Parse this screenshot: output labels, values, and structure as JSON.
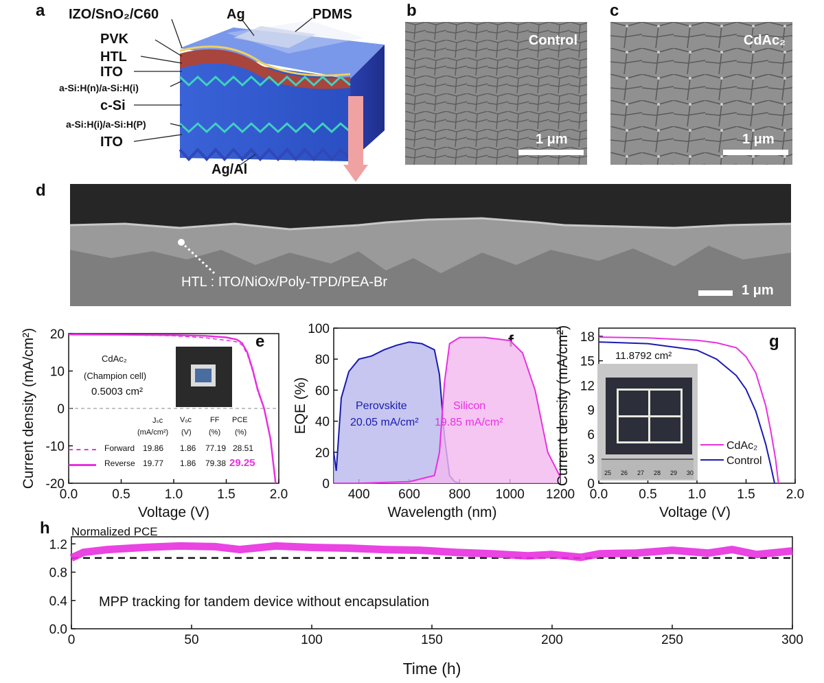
{
  "panels": {
    "a": {
      "label": "a",
      "layers": [
        "IZO/SnO₂/C60",
        "PVK",
        "HTL",
        "ITO",
        "a-Si:H(n)/a-Si:H(i)",
        "c-Si",
        "a-Si:H(i)/a-Si:H(P)",
        "ITO",
        "Ag/Al"
      ],
      "top_labels": [
        "Ag",
        "PDMS"
      ]
    },
    "b": {
      "label": "b",
      "caption": "Control",
      "scale": "1 μm"
    },
    "c": {
      "label": "c",
      "caption": "CdAc₂",
      "scale": "1 μm"
    },
    "d": {
      "label": "d",
      "annotation": "HTL : ITO/NiOx/Poly-TPD/PEA-Br",
      "scale": "1 μm"
    },
    "e": {
      "label": "e",
      "inset_title": "CdAc₂",
      "inset_sub": "(Champion cell)",
      "area": "0.5003 cm²",
      "table_headers": [
        "Jₛᴄ",
        "Vₒᴄ",
        "FF",
        "PCE"
      ],
      "table_units": [
        "(mA/cm²)",
        "(V)",
        "(%)",
        "(%)"
      ],
      "rows": [
        {
          "name": "Forward",
          "jsc": "19.86",
          "voc": "1.86",
          "ff": "77.19",
          "pce": "28.51"
        },
        {
          "name": "Reverse",
          "jsc": "19.77",
          "voc": "1.86",
          "ff": "79.38",
          "pce": "29.25"
        }
      ]
    },
    "f": {
      "label": "f",
      "series_labels": [
        "Perovskite",
        "Silicon"
      ],
      "jsc_labels": [
        "20.05 mA/cm²",
        "19.85 mA/cm²"
      ]
    },
    "g": {
      "label": "g",
      "area": "11.8792 cm²",
      "ruler": [
        "25",
        "26",
        "27",
        "28",
        "29",
        "30"
      ]
    },
    "h": {
      "label": "h",
      "annotation": "MPP tracking for tandem device without encapsulation"
    }
  },
  "colors": {
    "magenta": "#e830e0",
    "blue": "#1a1ab0",
    "pink_fill": "#f2b8ef",
    "blue_fill": "#b8b8ec"
  },
  "chart_data": [
    {
      "id": "e",
      "type": "line",
      "xlabel": "Voltage (V)",
      "ylabel": "Current density (mA/cm²)",
      "xlim": [
        0,
        2.0
      ],
      "ylim": [
        -20,
        20
      ],
      "xticks": [
        "0.0",
        "0.5",
        "1.0",
        "1.5",
        "2.0"
      ],
      "yticks": [
        "-20",
        "-10",
        "0",
        "10",
        "20"
      ],
      "series": [
        {
          "name": "Forward",
          "style": "dashed",
          "x": [
            0,
            0.5,
            1.0,
            1.3,
            1.5,
            1.6,
            1.65,
            1.7,
            1.75,
            1.8,
            1.86
          ],
          "y": [
            19.86,
            19.7,
            19.4,
            18.9,
            18.2,
            17.8,
            17.0,
            14.5,
            10.0,
            4.5,
            0
          ]
        },
        {
          "name": "Reverse",
          "style": "solid",
          "x": [
            0,
            0.5,
            1.0,
            1.3,
            1.5,
            1.6,
            1.65,
            1.7,
            1.75,
            1.8,
            1.86,
            1.92,
            1.97
          ],
          "y": [
            19.77,
            19.7,
            19.6,
            19.4,
            19.0,
            18.4,
            17.5,
            15.0,
            10.5,
            5.0,
            0,
            -8,
            -20
          ]
        }
      ]
    },
    {
      "id": "f",
      "type": "area",
      "xlabel": "Wavelength (nm)",
      "ylabel": "EQE (%)",
      "xlim": [
        300,
        1200
      ],
      "ylim": [
        0,
        100
      ],
      "xticks": [
        "400",
        "600",
        "800",
        "1000",
        "1200"
      ],
      "yticks": [
        "0",
        "20",
        "40",
        "60",
        "80",
        "100"
      ],
      "series": [
        {
          "name": "Perovskite",
          "x": [
            300,
            310,
            330,
            360,
            400,
            450,
            500,
            550,
            600,
            650,
            700,
            720,
            740,
            760,
            780,
            800
          ],
          "y": [
            20,
            8,
            55,
            72,
            80,
            82,
            86,
            89,
            91,
            90,
            86,
            70,
            30,
            5,
            1,
            0
          ]
        },
        {
          "name": "Silicon",
          "x": [
            300,
            400,
            600,
            700,
            720,
            740,
            760,
            800,
            900,
            1000,
            1050,
            1100,
            1150,
            1200
          ],
          "y": [
            0,
            0,
            1,
            5,
            20,
            65,
            90,
            94,
            94,
            92,
            84,
            60,
            20,
            4
          ]
        }
      ]
    },
    {
      "id": "g",
      "type": "line",
      "xlabel": "Voltage (V)",
      "ylabel": "Current density (mA/cm²)",
      "xlim": [
        0,
        2.0
      ],
      "ylim": [
        0,
        19
      ],
      "xticks": [
        "0.0",
        "0.5",
        "1.0",
        "1.5",
        "2.0"
      ],
      "yticks": [
        "0",
        "3",
        "6",
        "9",
        "12",
        "15",
        "18"
      ],
      "series": [
        {
          "name": "CdAc₂",
          "color": "magenta",
          "x": [
            0,
            0.5,
            1.0,
            1.2,
            1.4,
            1.5,
            1.6,
            1.7,
            1.75,
            1.8,
            1.83
          ],
          "y": [
            17.9,
            17.8,
            17.5,
            17.2,
            16.6,
            15.5,
            13.5,
            9.5,
            6.5,
            3.0,
            0
          ]
        },
        {
          "name": "Control",
          "color": "blue",
          "x": [
            0,
            0.5,
            1.0,
            1.2,
            1.4,
            1.5,
            1.6,
            1.7,
            1.75,
            1.79
          ],
          "y": [
            17.3,
            17.1,
            16.3,
            15.2,
            13.2,
            11.5,
            8.8,
            4.8,
            2.2,
            0
          ]
        }
      ]
    },
    {
      "id": "h",
      "type": "line",
      "ylabel_top": "Normalized PCE",
      "xlabel": "Time (h)",
      "xlim": [
        0,
        300
      ],
      "ylim": [
        0,
        1.3
      ],
      "xticks": [
        "0",
        "50",
        "100",
        "150",
        "200",
        "250",
        "300"
      ],
      "yticks": [
        "0.0",
        "0.4",
        "0.8",
        "1.2"
      ],
      "reference": 1.0,
      "series": [
        {
          "name": "MPP",
          "x": [
            0,
            5,
            15,
            30,
            45,
            60,
            70,
            85,
            100,
            115,
            130,
            145,
            160,
            175,
            190,
            200,
            212,
            220,
            235,
            250,
            265,
            275,
            285,
            300
          ],
          "y": [
            1.0,
            1.08,
            1.12,
            1.15,
            1.17,
            1.16,
            1.12,
            1.17,
            1.15,
            1.14,
            1.12,
            1.11,
            1.08,
            1.06,
            1.03,
            1.05,
            1.01,
            1.06,
            1.07,
            1.11,
            1.07,
            1.12,
            1.05,
            1.1
          ]
        }
      ]
    }
  ]
}
